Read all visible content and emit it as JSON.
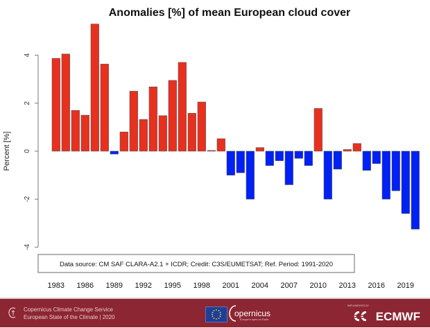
{
  "chart_data": {
    "type": "bar",
    "title": "Anomalies [%] of mean European cloud cover",
    "xlabel": "",
    "ylabel": "Percent [%]",
    "ylim": [
      -4,
      5.5
    ],
    "yticks": [
      -4,
      -2,
      0,
      2,
      4
    ],
    "grid": false,
    "positive_color": "#e8301f",
    "negative_color": "#0021f5",
    "x_tick_labels": [
      "1983",
      "1986",
      "1989",
      "1992",
      "1995",
      "1998",
      "2001",
      "2004",
      "2007",
      "2010",
      "2013",
      "2016",
      "2019"
    ],
    "categories": [
      "1983",
      "1984",
      "1985",
      "1986",
      "1987",
      "1988",
      "1989",
      "1990",
      "1991",
      "1992",
      "1993",
      "1994",
      "1995",
      "1996",
      "1997",
      "1998",
      "1999",
      "2000",
      "2001",
      "2002",
      "2003",
      "2004",
      "2005",
      "2006",
      "2007",
      "2008",
      "2009",
      "2010",
      "2011",
      "2012",
      "2013",
      "2014",
      "2015",
      "2016",
      "2017",
      "2018",
      "2019",
      "2020"
    ],
    "values": [
      3.87,
      4.05,
      1.7,
      1.5,
      5.3,
      3.63,
      -0.12,
      0.8,
      2.5,
      1.32,
      2.68,
      1.48,
      2.95,
      3.7,
      1.58,
      2.05,
      0.03,
      0.52,
      -1.0,
      -0.9,
      -2.0,
      0.15,
      -0.6,
      -0.4,
      -1.4,
      -0.3,
      -0.6,
      1.78,
      -2.0,
      -0.75,
      0.07,
      0.32,
      -0.8,
      -0.52,
      -2.0,
      -1.65,
      -2.6,
      -3.25
    ],
    "annotation": "Data source: CM SAF CLARA-A2.1 + ICDR;  Credit: C3S/EUMETSAT;  Ref. Period: 1991-2020"
  },
  "footer": {
    "service_line1": "Copernicus Climate Change Service",
    "service_line2": "European State of the Climate | 2020",
    "copernicus": "opernicus",
    "copernicus_sub": "Europe's eyes on Earth",
    "implemented_by": "IMPLEMENTED BY",
    "ecmwf": "ECMWF"
  }
}
